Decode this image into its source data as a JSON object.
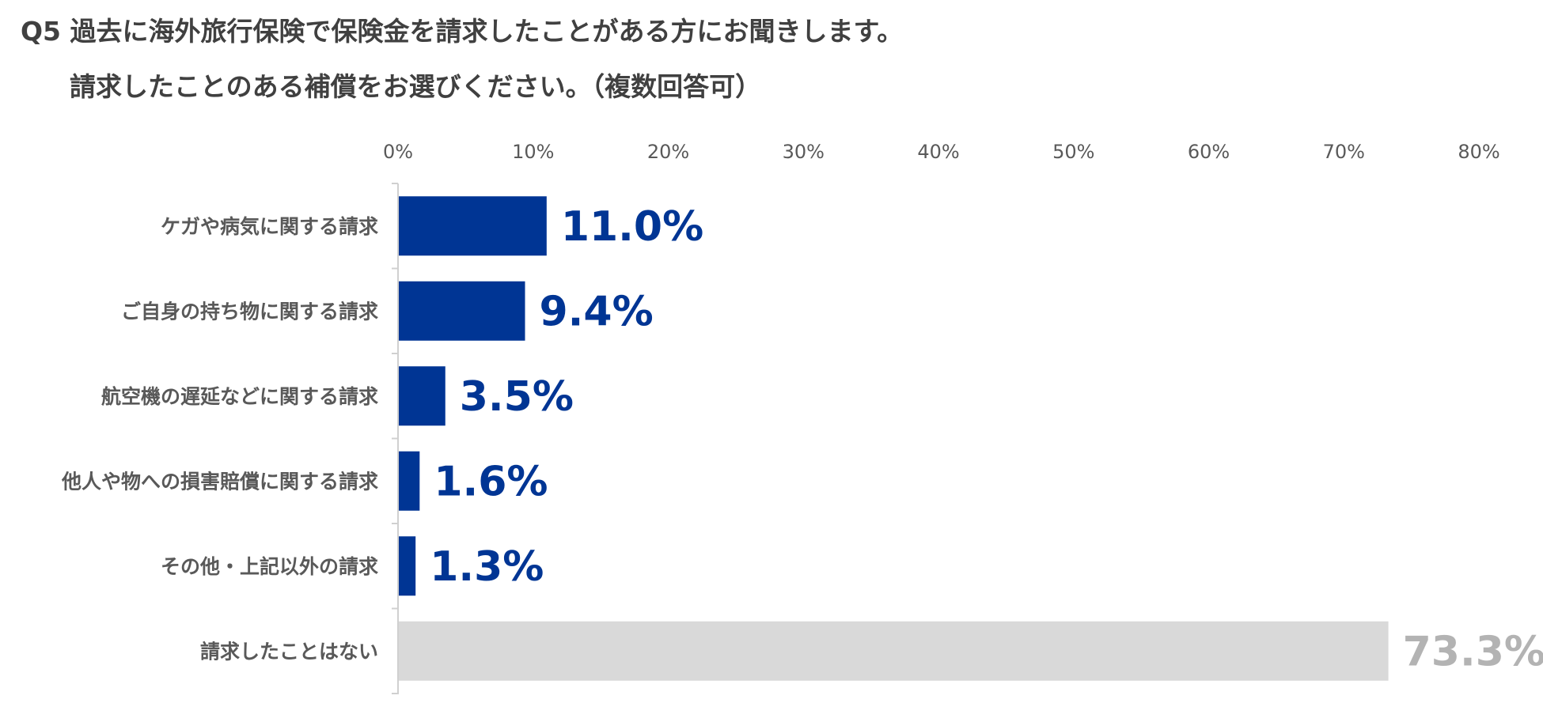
{
  "title": {
    "line1": "Q5 過去に海外旅行保険で保険金を請求したことがある方にお聞きします。",
    "line2": "請求したことのある補償をお選びください。（複数回答可）"
  },
  "colors": {
    "primary_bar": "#003594",
    "other_bar": "#d9d9d9",
    "other_label": "#b3b3b3",
    "axis": "#d0d0d0"
  },
  "chart_data": {
    "type": "bar",
    "orientation": "horizontal",
    "title": "Q5 過去に海外旅行保険で保険金を請求したことがある方にお聞きします。 請求したことのある補償をお選びください。（複数回答可）",
    "xlabel": "",
    "ylabel": "",
    "xlim": [
      0,
      80
    ],
    "ticks": [
      "0%",
      "10%",
      "20%",
      "30%",
      "40%",
      "50%",
      "60%",
      "70%",
      "80%"
    ],
    "tick_values": [
      0,
      10,
      20,
      30,
      40,
      50,
      60,
      70,
      80
    ],
    "axis_position": "top",
    "grid": false,
    "categories": [
      "ケガや病気に関する請求",
      "ご自身の持ち物に関する請求",
      "航空機の遅延などに関する請求",
      "他人や物への損害賠償に関する請求",
      "その他・上記以外の請求",
      "請求したことはない"
    ],
    "values": [
      11.0,
      9.4,
      3.5,
      1.6,
      1.3,
      73.3
    ],
    "value_labels": [
      "11.0%",
      "9.4%",
      "3.5%",
      "1.6%",
      "1.3%",
      "73.3%"
    ],
    "unit": "%"
  }
}
